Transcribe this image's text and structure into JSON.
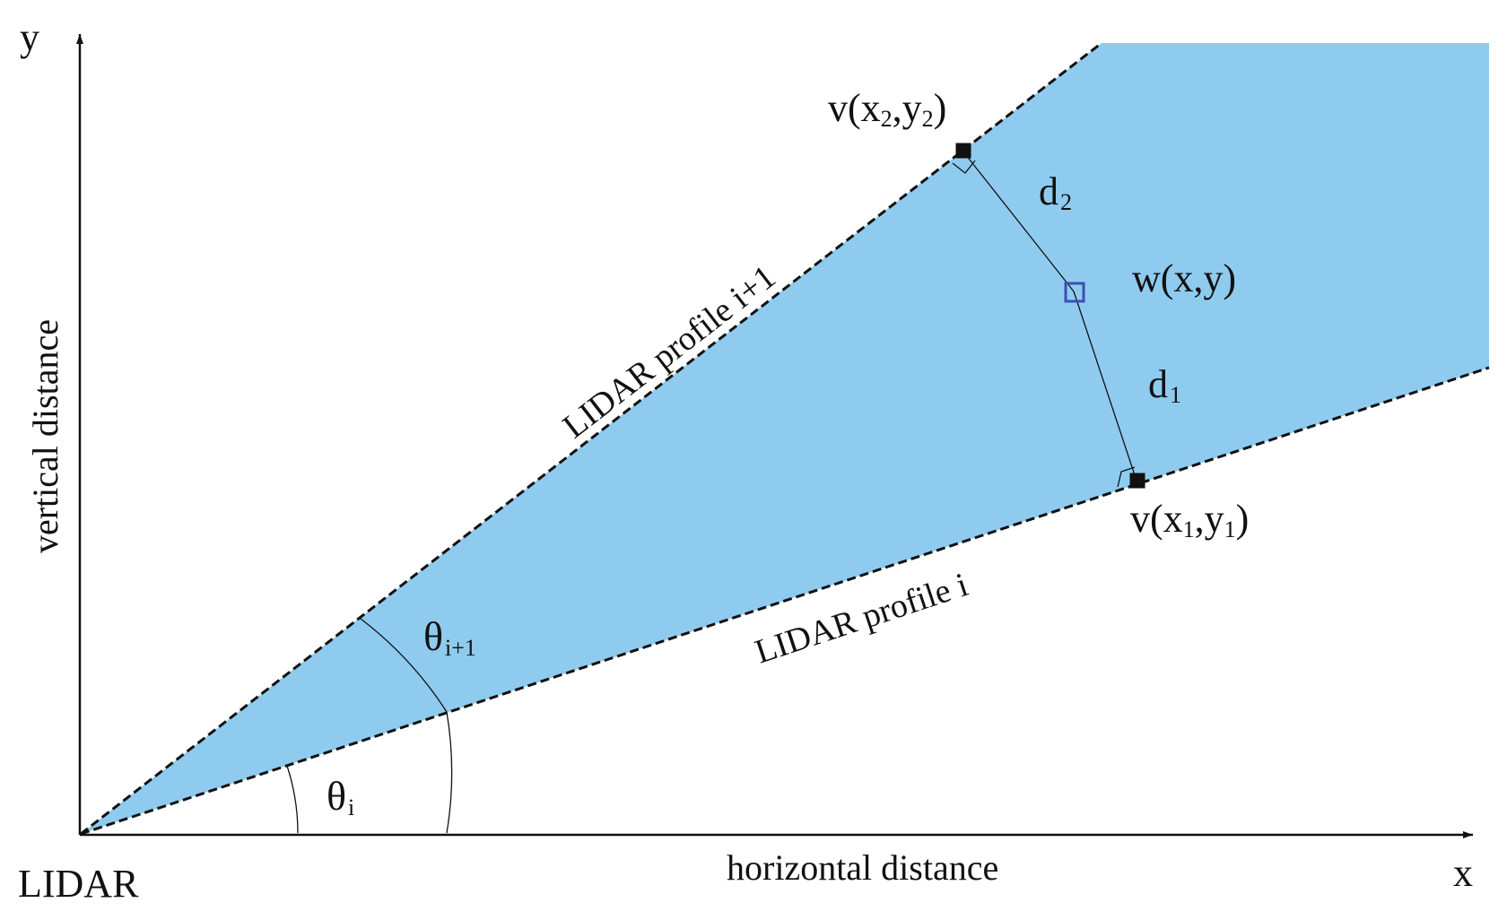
{
  "colors": {
    "region_fill": "#8fcbef",
    "line": "#111111",
    "sample_point": "#111111",
    "interpolated_point": "#3b4fb0"
  },
  "axes": {
    "x_label": "x",
    "y_label": "y",
    "horizontal_label": "horizontal distance",
    "vertical_label": "vertical distance",
    "origin_label": "LIDAR"
  },
  "profiles": {
    "lower": "LIDAR profile i",
    "upper": "LIDAR profile i+1"
  },
  "angles": {
    "theta_i": {
      "base": "θ",
      "sub": "i"
    },
    "theta_i1": {
      "base": "θ",
      "sub": "i+1"
    }
  },
  "points": {
    "v2": {
      "a": "v(x",
      "s1": "2",
      "b": ",y",
      "s2": "2",
      "c": ")"
    },
    "v1": {
      "a": "v(x",
      "s1": "1",
      "b": ",y",
      "s2": "1",
      "c": ")"
    },
    "w": "w(x,y)"
  },
  "distances": {
    "d2": {
      "base": "d",
      "sub": "2"
    },
    "d1": {
      "base": "d",
      "sub": "1"
    }
  }
}
